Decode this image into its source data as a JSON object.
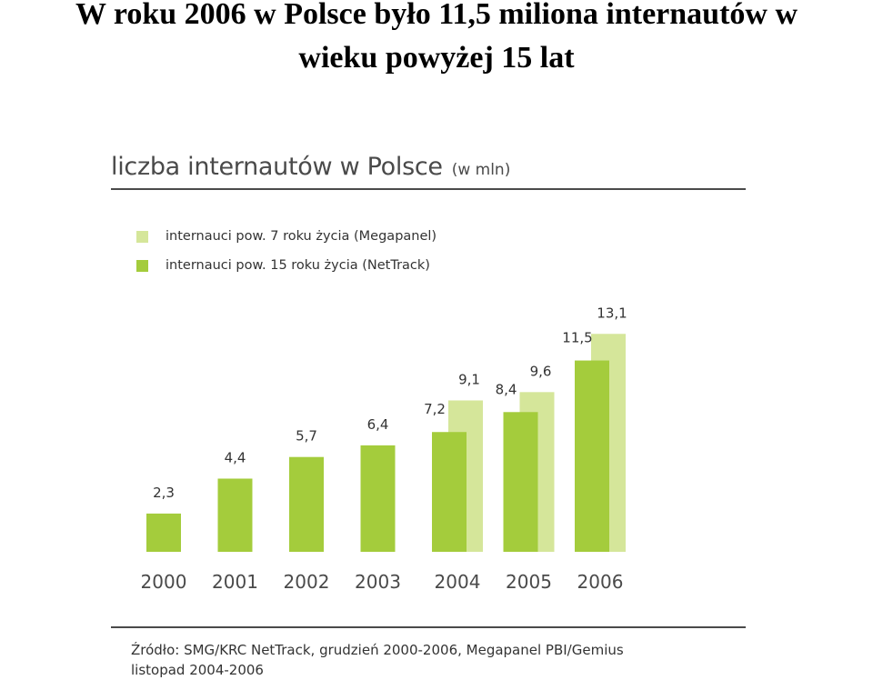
{
  "slide": {
    "title_line1": "W roku 2006 w Polsce było 11,5 miliona internautów w",
    "title_line2": "wieku powyżej 15 lat"
  },
  "chart_data": {
    "type": "bar",
    "title": "liczba internautów w Polsce",
    "unit_note": "(w mln)",
    "categories": [
      "2000",
      "2001",
      "2002",
      "2003",
      "2004",
      "2005",
      "2006"
    ],
    "series": [
      {
        "name": "internauci pow. 15 roku życia (NetTrack)",
        "color": "#a4cc3c",
        "values": [
          2.3,
          4.4,
          5.7,
          6.4,
          7.2,
          8.4,
          11.5
        ],
        "labels": [
          "2,3",
          "4,4",
          "5,7",
          "6,4",
          "7,2",
          "8,4",
          "11,5"
        ]
      },
      {
        "name": "internauci pow. 7 roku życia (Megapanel)",
        "color": "#d5e69a",
        "values": [
          null,
          null,
          null,
          null,
          9.1,
          9.6,
          13.1
        ],
        "labels": [
          null,
          null,
          null,
          null,
          "9,1",
          "9,6",
          "13,1"
        ]
      }
    ],
    "legend_order": [
      1,
      0
    ],
    "grid": false
  },
  "source": {
    "line1": "Źródło: SMG/KRC NetTrack, grudzień 2000-2006, Megapanel PBI/Gemius",
    "line2": "listopad 2004-2006"
  }
}
